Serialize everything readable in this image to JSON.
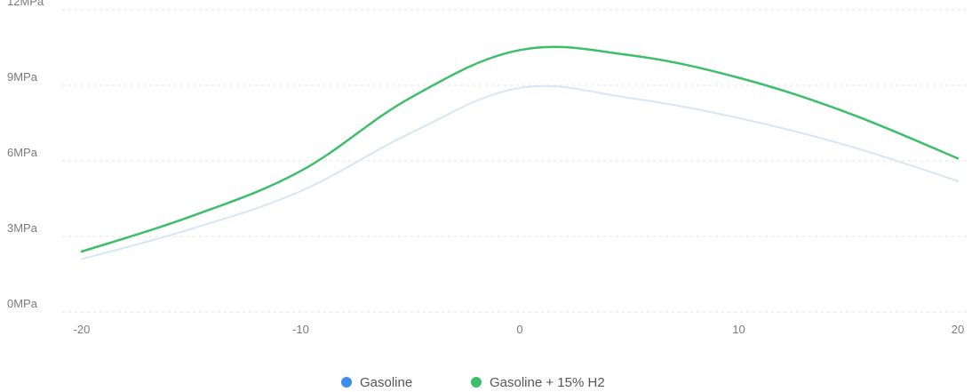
{
  "chart_data": {
    "type": "line",
    "title": "",
    "xlabel": "",
    "ylabel": "",
    "x_ticks": [
      -20,
      -10,
      0,
      10,
      20
    ],
    "y_ticks": [
      0,
      3,
      6,
      9,
      12
    ],
    "y_tick_labels": [
      "0MPa",
      "3MPa",
      "6MPa",
      "9MPa",
      "12MPa"
    ],
    "xlim": [
      -20,
      20
    ],
    "ylim": [
      0,
      12
    ],
    "grid": "horizontal-dotted",
    "legend_position": "bottom-center",
    "series": [
      {
        "name": "Gasoline",
        "color": "#3b8fe8",
        "line_color": "#d6e6f7",
        "x": [
          -20,
          -15,
          -10,
          -5,
          0,
          5,
          10,
          15,
          20
        ],
        "y": [
          2.1,
          3.3,
          4.8,
          7.1,
          8.9,
          8.5,
          7.7,
          6.6,
          5.2
        ]
      },
      {
        "name": "Gasoline + 15% H2",
        "color": "#3cbf6a",
        "line_color": "#3cbf6a",
        "x": [
          -20,
          -15,
          -10,
          -5,
          0,
          5,
          10,
          15,
          20
        ],
        "y": [
          2.4,
          3.8,
          5.6,
          8.5,
          10.4,
          10.2,
          9.3,
          7.9,
          6.1
        ]
      }
    ]
  }
}
